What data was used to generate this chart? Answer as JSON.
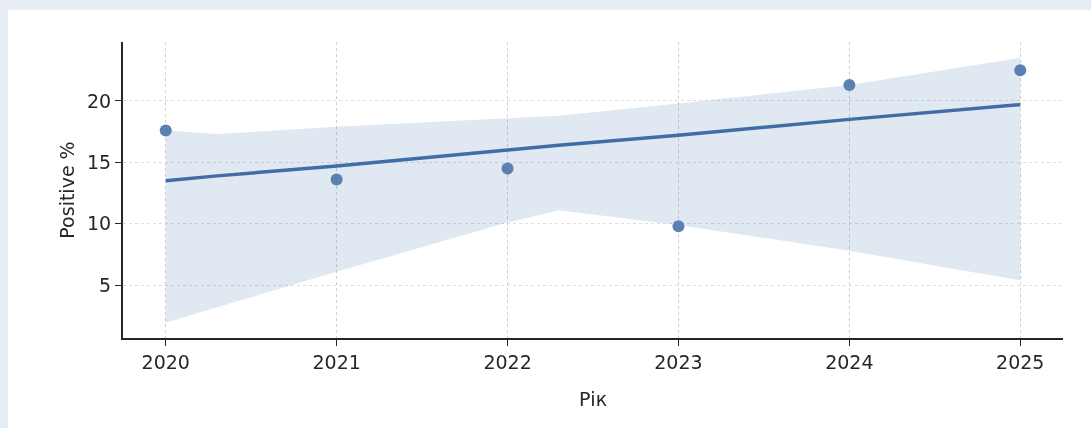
{
  "chart_data": {
    "type": "scatter",
    "xlabel": "Рік",
    "ylabel": "Positive %",
    "xlim": [
      2019.75,
      2025.25
    ],
    "xticks": [
      2020,
      2021,
      2022,
      2023,
      2024,
      2025
    ],
    "ylim": [
      0.7,
      24.8
    ],
    "yticks": [
      5,
      10,
      15,
      20
    ],
    "grid": true,
    "series": [
      {
        "type": "line",
        "color": "#3f6ea6",
        "line_style": "solid",
        "x": [
          2020,
          2020.3,
          2021,
          2022,
          2022.3,
          2023,
          2024,
          2025
        ],
        "values": [
          13.5,
          13.9,
          14.7,
          16.0,
          16.4,
          17.2,
          18.5,
          19.7
        ],
        "lower": [
          1.95,
          3.2,
          6.1,
          10.1,
          11.1,
          9.9,
          7.8,
          5.4
        ],
        "upper": [
          17.6,
          17.3,
          17.9,
          18.6,
          18.8,
          19.8,
          21.3,
          23.5
        ]
      },
      {
        "marker": "circle",
        "color": "#5b80b2",
        "x": [
          2020,
          2021,
          2022,
          2023,
          2024,
          2025
        ],
        "values": [
          17.6,
          13.6,
          14.5,
          9.8,
          21.3,
          22.5
        ]
      }
    ]
  }
}
